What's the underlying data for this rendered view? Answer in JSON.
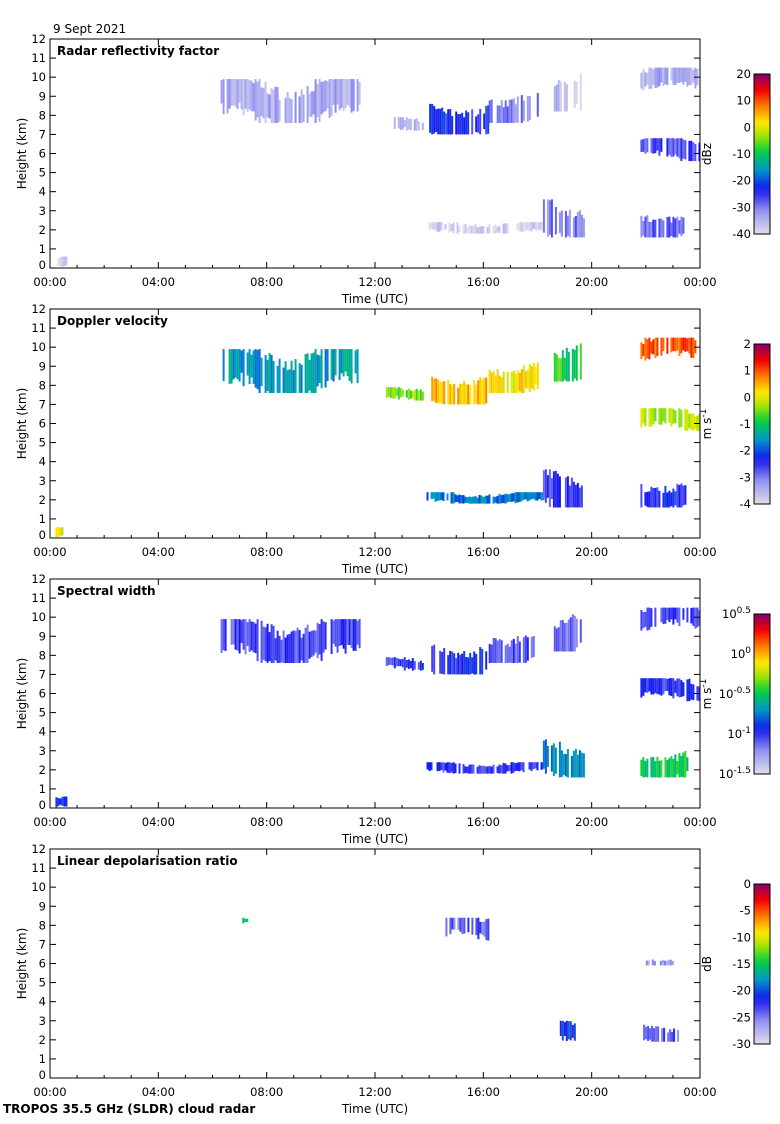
{
  "date_label": "9 Sept 2021",
  "footer": "TROPOS 35.5 GHz (SLDR) cloud radar",
  "chart_data": [
    {
      "type": "heatmap",
      "title": "Radar reflectivity factor",
      "xlabel": "Time (UTC)",
      "ylabel": "Height (km)",
      "xlim": [
        0,
        24
      ],
      "ylim": [
        0,
        12
      ],
      "xticks": [
        "00:00",
        "04:00",
        "08:00",
        "12:00",
        "16:00",
        "20:00",
        "00:00"
      ],
      "yticks": [
        "0",
        "1",
        "2",
        "3",
        "4",
        "5",
        "6",
        "7",
        "8",
        "9",
        "10",
        "11",
        "12"
      ],
      "colorbar": {
        "unit": "dBz",
        "unit_sup": "",
        "range": [
          -40,
          20
        ],
        "log": false,
        "ticks": [
          {
            "v": 20,
            "base": "20",
            "exp": ""
          },
          {
            "v": 10,
            "base": "10",
            "exp": ""
          },
          {
            "v": 0,
            "base": "0",
            "exp": ""
          },
          {
            "v": -10,
            "base": "-10",
            "exp": ""
          },
          {
            "v": -20,
            "base": "-20",
            "exp": ""
          },
          {
            "v": -30,
            "base": "-30",
            "exp": ""
          },
          {
            "v": -40,
            "base": "-40",
            "exp": ""
          }
        ]
      },
      "features": [
        {
          "t": [
            0.2,
            0.6
          ],
          "h": [
            0.0,
            0.6
          ],
          "v": -38
        },
        {
          "t": [
            6.3,
            11.4
          ],
          "h": [
            7.6,
            9.9
          ],
          "v": -34
        },
        {
          "t": [
            12.4,
            13.8
          ],
          "h": [
            7.2,
            7.9
          ],
          "v": -33
        },
        {
          "t": [
            14.0,
            16.2
          ],
          "h": [
            7.0,
            8.6
          ],
          "v": -24
        },
        {
          "t": [
            16.2,
            18.0
          ],
          "h": [
            7.6,
            9.2
          ],
          "v": -30
        },
        {
          "t": [
            18.6,
            19.6
          ],
          "h": [
            8.2,
            10.2
          ],
          "v": -36
        },
        {
          "t": [
            21.8,
            24.0
          ],
          "h": [
            9.3,
            10.5
          ],
          "v": -34
        },
        {
          "t": [
            21.8,
            24.0
          ],
          "h": [
            5.6,
            6.8
          ],
          "v": -27
        },
        {
          "t": [
            13.9,
            18.2
          ],
          "h": [
            1.8,
            2.4
          ],
          "v": -39
        },
        {
          "t": [
            18.2,
            19.7
          ],
          "h": [
            1.6,
            3.6
          ],
          "v": -30
        },
        {
          "t": [
            21.8,
            23.5
          ],
          "h": [
            1.6,
            3.0
          ],
          "v": -28
        }
      ]
    },
    {
      "type": "heatmap",
      "title": "Doppler velocity",
      "xlabel": "Time (UTC)",
      "ylabel": "Height (km)",
      "xlim": [
        0,
        24
      ],
      "ylim": [
        0,
        12
      ],
      "xticks": [
        "00:00",
        "04:00",
        "08:00",
        "12:00",
        "16:00",
        "20:00",
        "00:00"
      ],
      "yticks": [
        "0",
        "1",
        "2",
        "3",
        "4",
        "5",
        "6",
        "7",
        "8",
        "9",
        "10",
        "11",
        "12"
      ],
      "colorbar": {
        "unit": "m s",
        "unit_sup": "-1",
        "range": [
          -4,
          2
        ],
        "log": false,
        "ticks": [
          {
            "v": 2,
            "base": "2",
            "exp": ""
          },
          {
            "v": 1,
            "base": "1",
            "exp": ""
          },
          {
            "v": 0,
            "base": "0",
            "exp": ""
          },
          {
            "v": -1,
            "base": "-1",
            "exp": ""
          },
          {
            "v": -2,
            "base": "-2",
            "exp": ""
          },
          {
            "v": -3,
            "base": "-3",
            "exp": ""
          },
          {
            "v": -4,
            "base": "-4",
            "exp": ""
          }
        ]
      },
      "features": [
        {
          "t": [
            0.2,
            0.6
          ],
          "h": [
            0.0,
            0.6
          ],
          "v": 0.0
        },
        {
          "t": [
            6.3,
            11.4
          ],
          "h": [
            7.6,
            9.9
          ],
          "v": -1.5
        },
        {
          "t": [
            12.4,
            13.8
          ],
          "h": [
            7.2,
            7.9
          ],
          "v": -0.5
        },
        {
          "t": [
            14.0,
            16.2
          ],
          "h": [
            7.0,
            8.6
          ],
          "v": 0.4
        },
        {
          "t": [
            16.2,
            18.0
          ],
          "h": [
            7.6,
            9.2
          ],
          "v": 0.2
        },
        {
          "t": [
            18.6,
            19.6
          ],
          "h": [
            8.2,
            10.2
          ],
          "v": -0.8
        },
        {
          "t": [
            21.8,
            24.0
          ],
          "h": [
            9.3,
            10.5
          ],
          "v": 1.0
        },
        {
          "t": [
            21.8,
            24.0
          ],
          "h": [
            5.6,
            6.8
          ],
          "v": -0.2
        },
        {
          "t": [
            13.9,
            18.2
          ],
          "h": [
            1.8,
            2.4
          ],
          "v": -1.8
        },
        {
          "t": [
            18.2,
            19.7
          ],
          "h": [
            1.6,
            3.6
          ],
          "v": -2.6
        },
        {
          "t": [
            21.8,
            23.5
          ],
          "h": [
            1.6,
            3.0
          ],
          "v": -2.4
        }
      ]
    },
    {
      "type": "heatmap",
      "title": "Spectral width",
      "xlabel": "Time (UTC)",
      "ylabel": "Height (km)",
      "xlim": [
        0,
        24
      ],
      "ylim": [
        0,
        12
      ],
      "xticks": [
        "00:00",
        "04:00",
        "08:00",
        "12:00",
        "16:00",
        "20:00",
        "00:00"
      ],
      "yticks": [
        "0",
        "1",
        "2",
        "3",
        "4",
        "5",
        "6",
        "7",
        "8",
        "9",
        "10",
        "11",
        "12"
      ],
      "colorbar": {
        "unit": "m s",
        "unit_sup": "-1",
        "range": [
          -1.5,
          0.5
        ],
        "log": true,
        "ticks": [
          {
            "v": 0.5,
            "base": "10",
            "exp": "0.5"
          },
          {
            "v": 0,
            "base": "10",
            "exp": "0"
          },
          {
            "v": -0.5,
            "base": "10",
            "exp": "-0.5"
          },
          {
            "v": -1,
            "base": "10",
            "exp": "-1"
          },
          {
            "v": -1.5,
            "base": "10",
            "exp": "-1.5"
          }
        ]
      },
      "features": [
        {
          "t": [
            0.2,
            0.6
          ],
          "h": [
            0.0,
            0.6
          ],
          "v": -0.9
        },
        {
          "t": [
            6.3,
            11.4
          ],
          "h": [
            7.6,
            9.9
          ],
          "v": -1.05
        },
        {
          "t": [
            12.4,
            13.8
          ],
          "h": [
            7.2,
            7.9
          ],
          "v": -1.0
        },
        {
          "t": [
            14.0,
            16.2
          ],
          "h": [
            7.0,
            8.6
          ],
          "v": -0.95
        },
        {
          "t": [
            16.2,
            18.0
          ],
          "h": [
            7.6,
            9.2
          ],
          "v": -1.05
        },
        {
          "t": [
            18.6,
            19.6
          ],
          "h": [
            8.2,
            10.2
          ],
          "v": -1.1
        },
        {
          "t": [
            21.8,
            24.0
          ],
          "h": [
            9.3,
            10.5
          ],
          "v": -1.05
        },
        {
          "t": [
            21.8,
            24.0
          ],
          "h": [
            5.6,
            6.8
          ],
          "v": -1.0
        },
        {
          "t": [
            13.9,
            18.2
          ],
          "h": [
            1.8,
            2.4
          ],
          "v": -1.0
        },
        {
          "t": [
            18.2,
            19.7
          ],
          "h": [
            1.6,
            3.6
          ],
          "v": -0.7
        },
        {
          "t": [
            21.8,
            23.5
          ],
          "h": [
            1.6,
            3.0
          ],
          "v": -0.5
        }
      ]
    },
    {
      "type": "heatmap",
      "title": "Linear depolarisation ratio",
      "xlabel": "Time (UTC)",
      "ylabel": "Height (km)",
      "xlim": [
        0,
        24
      ],
      "ylim": [
        0,
        12
      ],
      "xticks": [
        "00:00",
        "04:00",
        "08:00",
        "12:00",
        "16:00",
        "20:00",
        "00:00"
      ],
      "yticks": [
        "0",
        "1",
        "2",
        "3",
        "4",
        "5",
        "6",
        "7",
        "8",
        "9",
        "10",
        "11",
        "12"
      ],
      "colorbar": {
        "unit": "dB",
        "unit_sup": "",
        "range": [
          -30,
          0
        ],
        "log": false,
        "ticks": [
          {
            "v": 0,
            "base": "0",
            "exp": ""
          },
          {
            "v": -5,
            "base": "-5",
            "exp": ""
          },
          {
            "v": -10,
            "base": "-10",
            "exp": ""
          },
          {
            "v": -15,
            "base": "-15",
            "exp": ""
          },
          {
            "v": -20,
            "base": "-20",
            "exp": ""
          },
          {
            "v": -25,
            "base": "-25",
            "exp": ""
          },
          {
            "v": -30,
            "base": "-30",
            "exp": ""
          }
        ]
      },
      "features": [
        {
          "t": [
            7.1,
            7.3
          ],
          "h": [
            8.1,
            8.4
          ],
          "v": -16
        },
        {
          "t": [
            14.6,
            16.2
          ],
          "h": [
            7.2,
            8.4
          ],
          "v": -24
        },
        {
          "t": [
            18.6,
            19.4
          ],
          "h": [
            1.8,
            3.0
          ],
          "v": -21
        },
        {
          "t": [
            21.9,
            23.2
          ],
          "h": [
            1.9,
            2.8
          ],
          "v": -24
        },
        {
          "t": [
            22.0,
            23.1
          ],
          "h": [
            5.9,
            6.3
          ],
          "v": -26
        }
      ]
    }
  ]
}
